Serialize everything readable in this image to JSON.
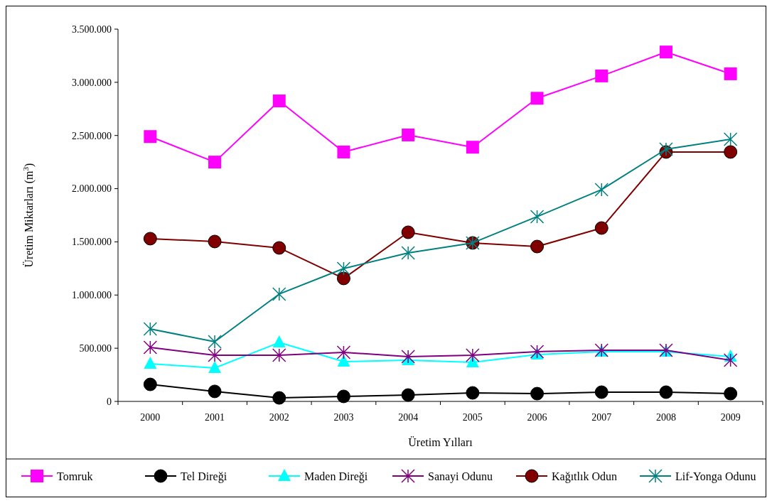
{
  "chart_data": {
    "type": "line",
    "xlabel": "Üretim Yılları",
    "ylabel": "Üretim Miktarları (m$^{3}$)",
    "categories": [
      "2000",
      "2001",
      "2002",
      "2003",
      "2004",
      "2005",
      "2006",
      "2007",
      "2008",
      "2009"
    ],
    "ylim": [
      0,
      3500000
    ],
    "yticks": [
      {
        "value": 0,
        "label": "0"
      },
      {
        "value": 500000,
        "label": "500.000"
      },
      {
        "value": 1000000,
        "label": "1.000.000"
      },
      {
        "value": 1500000,
        "label": "1.500.000"
      },
      {
        "value": 2000000,
        "label": "2.000.000"
      },
      {
        "value": 2500000,
        "label": "2.500.000"
      },
      {
        "value": 3000000,
        "label": "3.000.000"
      },
      {
        "value": 3500000,
        "label": "3.500.000"
      }
    ],
    "grid": false,
    "legend": "bottom",
    "series": [
      {
        "name": "Tomruk",
        "color": "#ff00ff",
        "marker": "square",
        "values": [
          2490000,
          2250000,
          2825000,
          2345000,
          2505000,
          2390000,
          2850000,
          3060000,
          3285000,
          3080000
        ]
      },
      {
        "name": "Tel Direği",
        "color": "#000000",
        "marker": "circle",
        "values": [
          160000,
          94000,
          33000,
          47000,
          60000,
          80000,
          73000,
          87000,
          87000,
          73000
        ]
      },
      {
        "name": "Maden Direği",
        "color": "#00ffff",
        "marker": "triangle",
        "values": [
          354000,
          314000,
          554000,
          374000,
          387000,
          367000,
          441000,
          468000,
          468000,
          421000
        ]
      },
      {
        "name": "Sanayi Odunu",
        "color": "#800080",
        "marker": "cross",
        "values": [
          508000,
          434000,
          434000,
          461000,
          421000,
          434000,
          468000,
          481000,
          481000,
          387000
        ]
      },
      {
        "name": "Kağıtlık Odun",
        "color": "#800000",
        "marker": "circle",
        "values": [
          1530000,
          1503000,
          1443000,
          1156000,
          1590000,
          1490000,
          1456000,
          1630000,
          2345000,
          2345000
        ]
      },
      {
        "name": "Lif-Yonga Odunu",
        "color": "#008080",
        "marker": "cross",
        "values": [
          681000,
          561000,
          1009000,
          1249000,
          1396000,
          1490000,
          1737000,
          1991000,
          2371000,
          2465000
        ]
      }
    ]
  }
}
